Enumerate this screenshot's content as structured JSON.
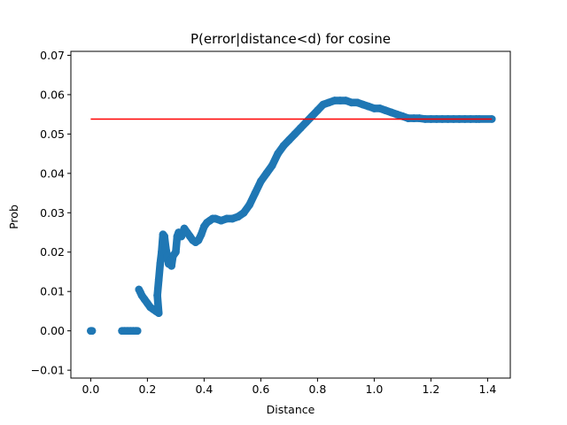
{
  "chart_data": {
    "type": "scatter",
    "title": "P(error|distance<d) for cosine",
    "xlabel": "Distance",
    "ylabel": "Prob",
    "xlim": [
      -0.07,
      1.48
    ],
    "ylim": [
      -0.012,
      0.071
    ],
    "x_ticks": [
      "0.0",
      "0.2",
      "0.4",
      "0.6",
      "0.8",
      "1.0",
      "1.2",
      "1.4"
    ],
    "x_tick_values": [
      0.0,
      0.2,
      0.4,
      0.6,
      0.8,
      1.0,
      1.2,
      1.4
    ],
    "y_ticks": [
      "−0.01",
      "0.00",
      "0.01",
      "0.02",
      "0.03",
      "0.04",
      "0.05",
      "0.06",
      "0.07"
    ],
    "y_tick_values": [
      -0.01,
      0.0,
      0.01,
      0.02,
      0.03,
      0.04,
      0.05,
      0.06,
      0.07
    ],
    "grid": false,
    "series": [
      {
        "marker": "circle",
        "color": "#1f77b4",
        "x": [
          0.0,
          0.005,
          0.11,
          0.12,
          0.13,
          0.14,
          0.15,
          0.16,
          0.165,
          0.17,
          0.175,
          0.18,
          0.19,
          0.2,
          0.21,
          0.22,
          0.23,
          0.24,
          0.235,
          0.24,
          0.245,
          0.25,
          0.255,
          0.26,
          0.265,
          0.27,
          0.275,
          0.28,
          0.285,
          0.29,
          0.3,
          0.305,
          0.31,
          0.32,
          0.33,
          0.34,
          0.35,
          0.36,
          0.37,
          0.38,
          0.39,
          0.4,
          0.41,
          0.42,
          0.43,
          0.44,
          0.46,
          0.48,
          0.5,
          0.52,
          0.54,
          0.56,
          0.58,
          0.6,
          0.62,
          0.64,
          0.66,
          0.68,
          0.7,
          0.72,
          0.74,
          0.76,
          0.78,
          0.8,
          0.82,
          0.84,
          0.86,
          0.88,
          0.9,
          0.92,
          0.94,
          0.96,
          0.98,
          1.0,
          1.02,
          1.04,
          1.06,
          1.08,
          1.1,
          1.12,
          1.14,
          1.16,
          1.18,
          1.2,
          1.22,
          1.24,
          1.26,
          1.28,
          1.3,
          1.32,
          1.34,
          1.36,
          1.37,
          1.415
        ],
        "y": [
          0.0,
          0.0,
          0.0,
          0.0,
          0.0,
          0.0,
          0.0,
          0.0,
          0.0,
          0.0105,
          0.0098,
          0.009,
          0.008,
          0.007,
          0.006,
          0.0055,
          0.005,
          0.0045,
          0.009,
          0.013,
          0.017,
          0.02,
          0.0245,
          0.024,
          0.021,
          0.019,
          0.017,
          0.018,
          0.0165,
          0.019,
          0.02,
          0.024,
          0.025,
          0.024,
          0.026,
          0.025,
          0.024,
          0.023,
          0.0225,
          0.023,
          0.0245,
          0.0265,
          0.0275,
          0.028,
          0.0285,
          0.0285,
          0.028,
          0.0285,
          0.0285,
          0.029,
          0.03,
          0.032,
          0.035,
          0.038,
          0.04,
          0.042,
          0.045,
          0.047,
          0.0485,
          0.05,
          0.0515,
          0.053,
          0.0545,
          0.056,
          0.0575,
          0.058,
          0.0585,
          0.0585,
          0.0585,
          0.058,
          0.058,
          0.0575,
          0.057,
          0.0565,
          0.0565,
          0.056,
          0.0555,
          0.055,
          0.0545,
          0.054,
          0.054,
          0.054,
          0.0538,
          0.0538,
          0.0538,
          0.0538,
          0.0538,
          0.0538,
          0.0538,
          0.0538,
          0.0538,
          0.0538,
          0.0538,
          0.0538
        ]
      },
      {
        "type": "hline",
        "color": "#ff0000",
        "x": [
          0.0,
          1.415
        ],
        "y": [
          0.0538,
          0.0538
        ]
      }
    ]
  }
}
